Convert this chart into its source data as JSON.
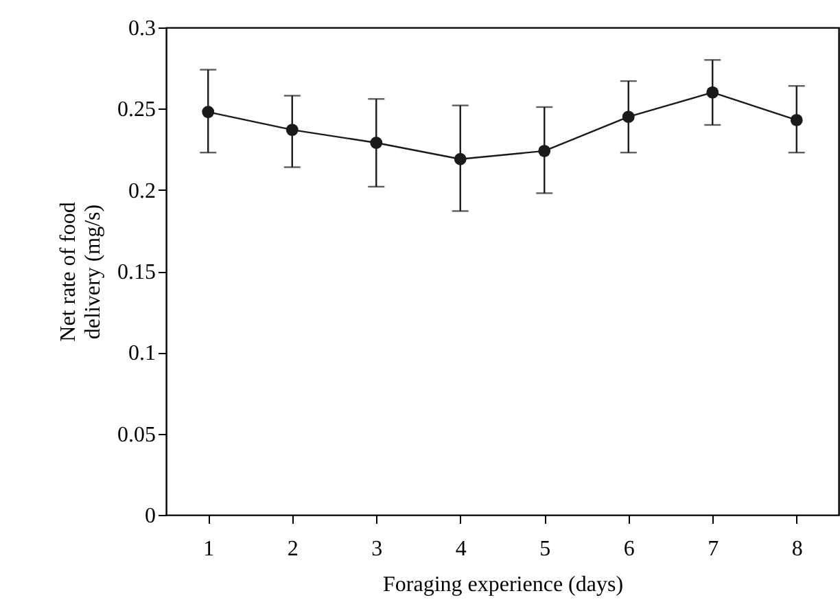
{
  "chart_data": {
    "type": "line",
    "xlabel": "Foraging experience (days)",
    "ylabel": "Net rate of food delivery (mg/s)",
    "x": [
      1,
      2,
      3,
      4,
      5,
      6,
      7,
      8
    ],
    "values": [
      0.248,
      0.237,
      0.229,
      0.219,
      0.224,
      0.245,
      0.26,
      0.243
    ],
    "errors": [
      [
        0.223,
        0.274
      ],
      [
        0.214,
        0.258
      ],
      [
        0.202,
        0.256
      ],
      [
        0.187,
        0.252
      ],
      [
        0.198,
        0.251
      ],
      [
        0.223,
        0.267
      ],
      [
        0.24,
        0.28
      ],
      [
        0.223,
        0.264
      ]
    ],
    "color": "#1a1a1a",
    "marker": "circle",
    "line_style": "solid",
    "grid": false,
    "xlim": [
      0.5,
      8.5
    ],
    "xticks": [
      1,
      2,
      3,
      4,
      5,
      6,
      7,
      8
    ],
    "ylim": [
      0,
      0.3
    ],
    "yticks": [
      0,
      0.05,
      0.1,
      0.15,
      0.2,
      0.25,
      0.3
    ]
  }
}
